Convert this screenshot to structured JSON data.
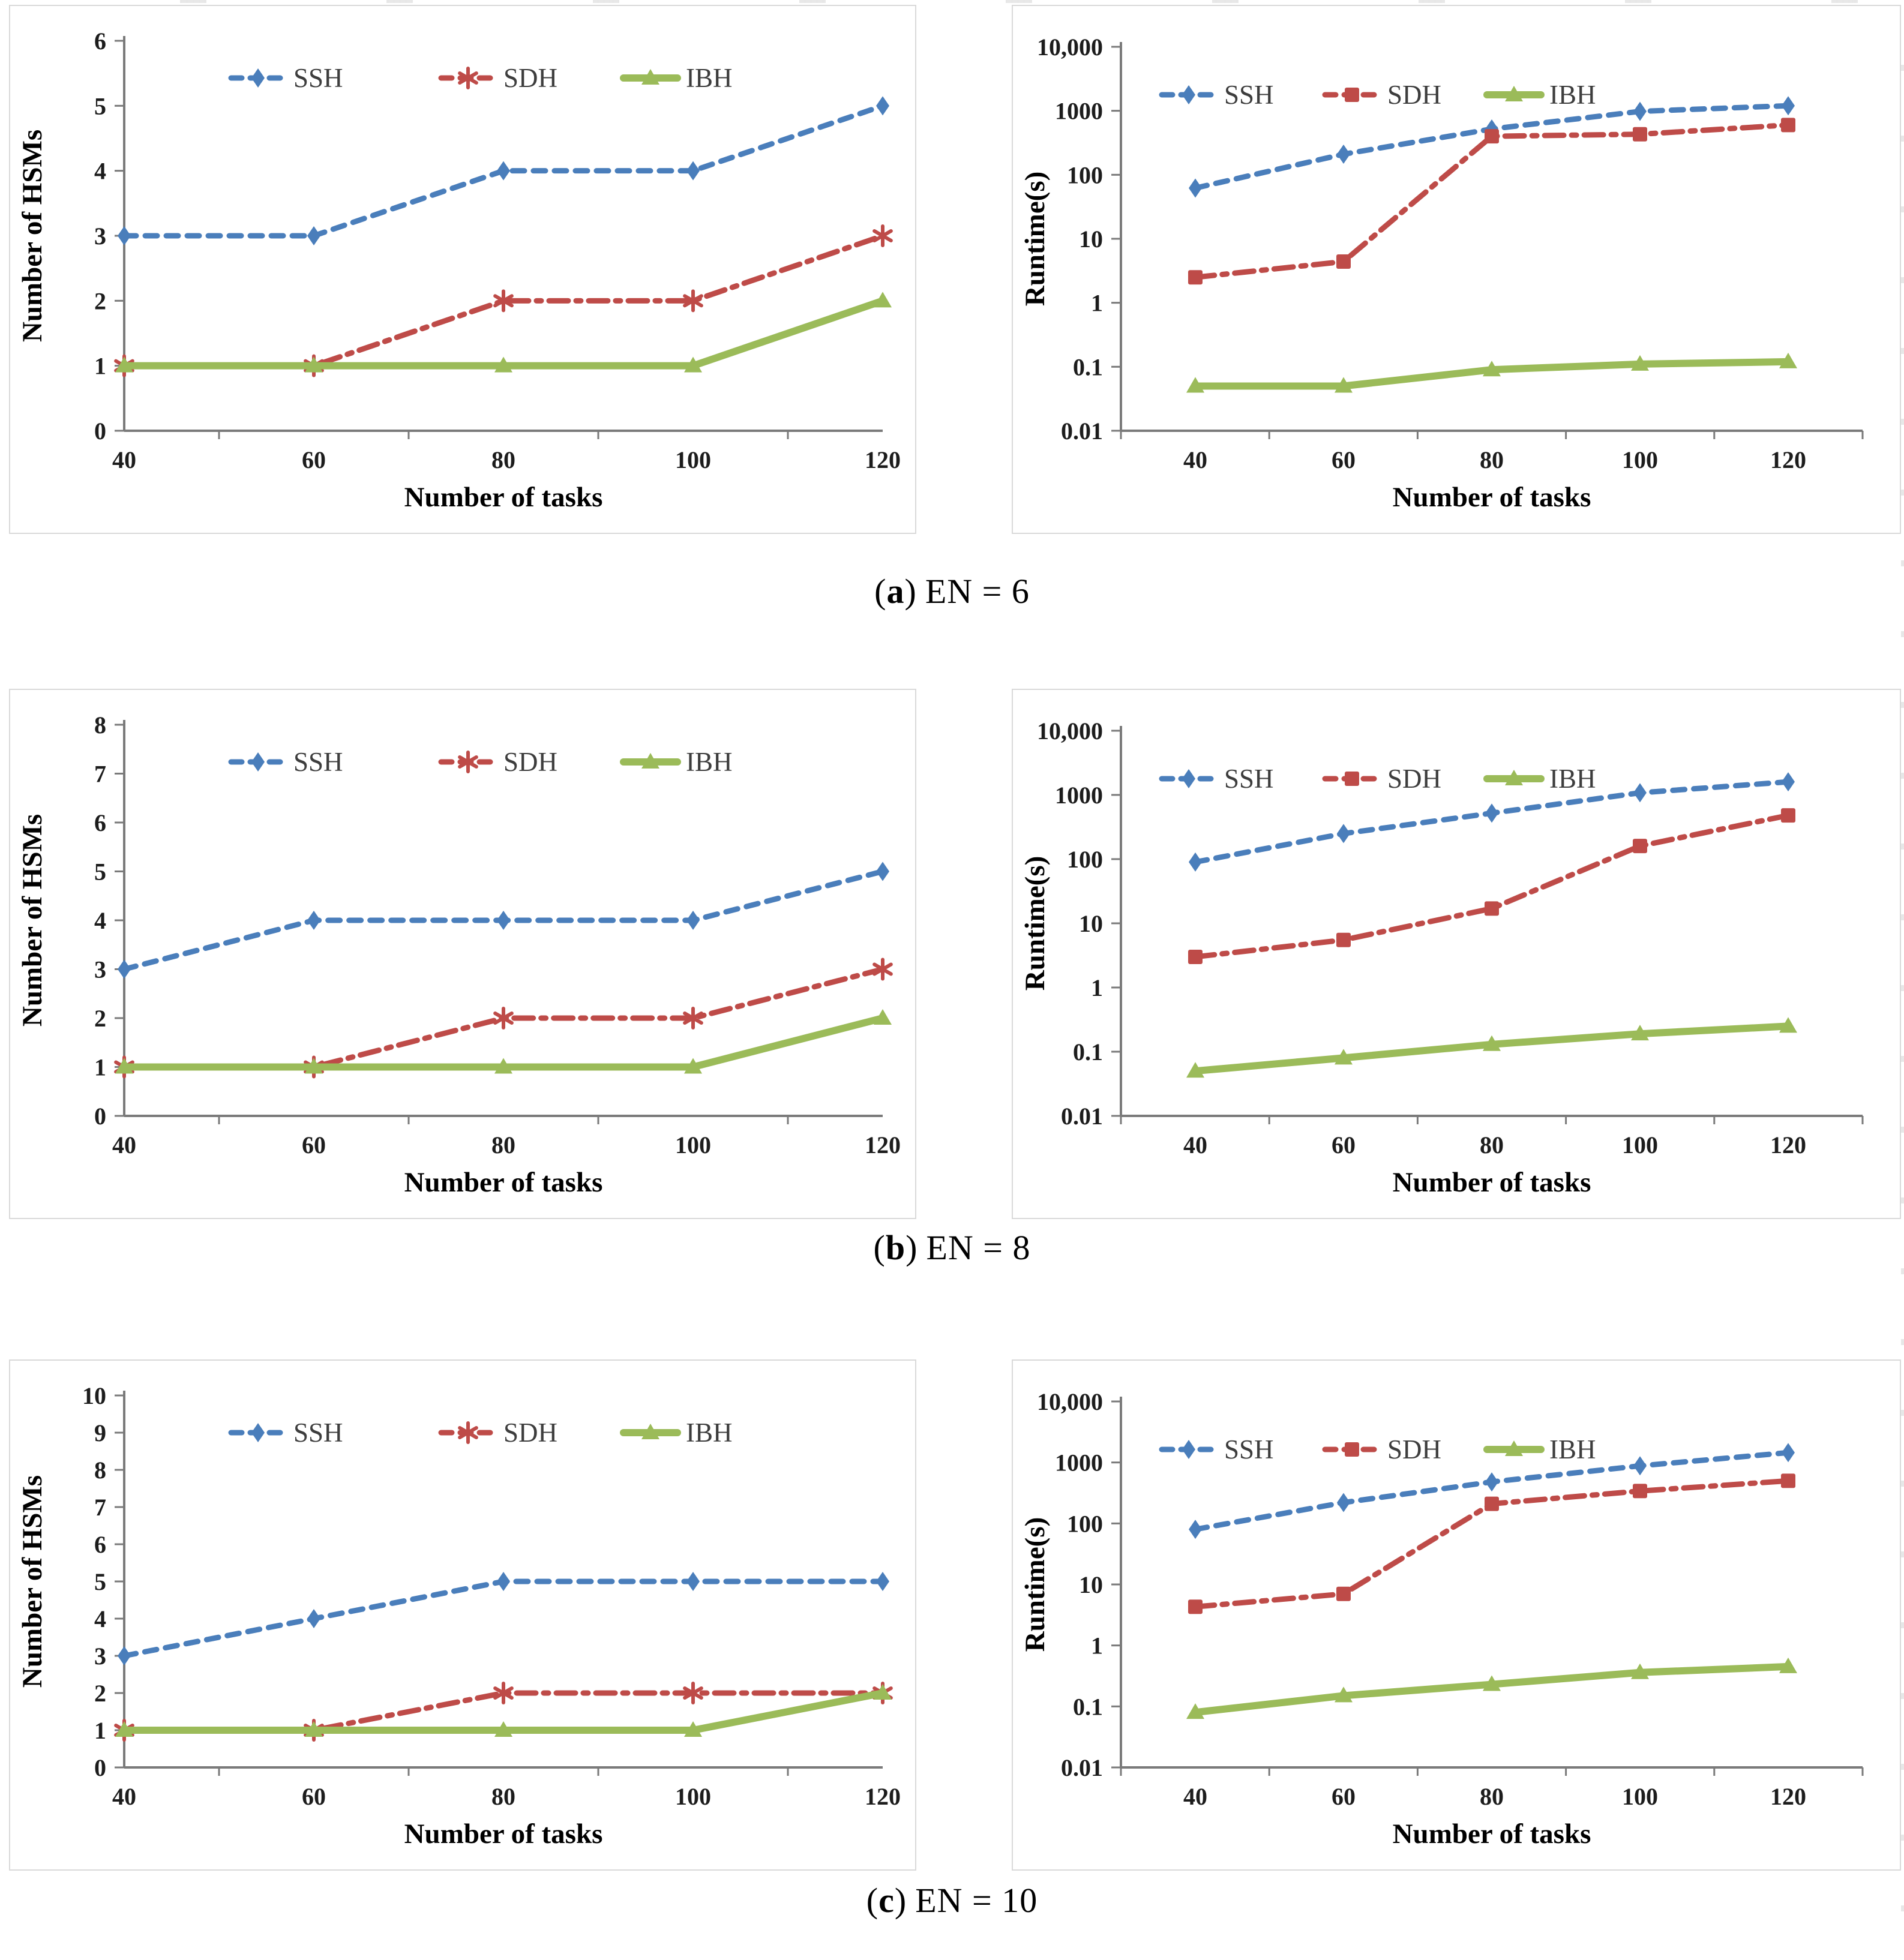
{
  "figure": {
    "captions": [
      {
        "open": "(",
        "letter": "a",
        "close": ")",
        "text": "EN = 6"
      },
      {
        "open": "(",
        "letter": "b",
        "close": ")",
        "text": "EN = 8"
      },
      {
        "open": "(",
        "letter": "c",
        "close": ")",
        "text": "EN = 10"
      }
    ]
  },
  "colors": {
    "ssh": "#4A7EBB",
    "sdh": "#BE4B48",
    "ibh": "#9BBB59",
    "axis": "#7a7a7a",
    "legend_text": "#3d3d3d",
    "panel_border": "#d9d9d9"
  },
  "chart_data": [
    {
      "id": "en6-hsms",
      "type": "line",
      "group": "EN = 6",
      "x": [
        40,
        60,
        80,
        100,
        120
      ],
      "xlabel": "Number of tasks",
      "ylabel": "Number of HSMs",
      "y_scale": "linear",
      "ylim": [
        0,
        6
      ],
      "yticks": [
        0,
        1,
        2,
        3,
        4,
        5,
        6
      ],
      "ytick_labels": [
        "0",
        "1",
        "2",
        "3",
        "4",
        "5",
        "6"
      ],
      "grid": false,
      "legend_position": "top-center",
      "series": [
        {
          "name": "SSH",
          "color_key": "ssh",
          "line_style": "dashed",
          "marker": "diamond",
          "values": [
            3,
            3,
            4,
            4,
            5
          ]
        },
        {
          "name": "SDH",
          "color_key": "sdh",
          "line_style": "dashdot",
          "marker": "asterisk",
          "values": [
            1,
            1,
            2,
            2,
            3
          ]
        },
        {
          "name": "IBH",
          "color_key": "ibh",
          "line_style": "solid",
          "marker": "triangle",
          "values": [
            1,
            1,
            1,
            1,
            2
          ]
        }
      ]
    },
    {
      "id": "en6-runtime",
      "type": "line",
      "group": "EN = 6",
      "x": [
        40,
        60,
        80,
        100,
        120
      ],
      "xlabel": "Number of tasks",
      "ylabel": "Runtime(s)",
      "y_scale": "log",
      "ylim": [
        0.01,
        10000
      ],
      "yticks": [
        0.01,
        0.1,
        1,
        10,
        100,
        1000,
        10000
      ],
      "ytick_labels": [
        "0.01",
        "0.1",
        "1",
        "10",
        "100",
        "1000",
        "10,000"
      ],
      "grid": false,
      "legend_position": "top-left",
      "series": [
        {
          "name": "SSH",
          "color_key": "ssh",
          "line_style": "dashed",
          "marker": "diamond",
          "values": [
            62,
            210,
            520,
            980,
            1200
          ]
        },
        {
          "name": "SDH",
          "color_key": "sdh",
          "line_style": "dashdot",
          "marker": "square",
          "values": [
            2.5,
            4.4,
            400,
            430,
            600
          ]
        },
        {
          "name": "IBH",
          "color_key": "ibh",
          "line_style": "solid",
          "marker": "triangle",
          "values": [
            0.05,
            0.05,
            0.09,
            0.11,
            0.12
          ]
        }
      ]
    },
    {
      "id": "en8-hsms",
      "type": "line",
      "group": "EN = 8",
      "x": [
        40,
        60,
        80,
        100,
        120
      ],
      "xlabel": "Number of tasks",
      "ylabel": "Number of HSMs",
      "y_scale": "linear",
      "ylim": [
        0,
        8
      ],
      "yticks": [
        0,
        1,
        2,
        3,
        4,
        5,
        6,
        7,
        8
      ],
      "ytick_labels": [
        "0",
        "1",
        "2",
        "3",
        "4",
        "5",
        "6",
        "7",
        "8"
      ],
      "grid": false,
      "legend_position": "top-center",
      "series": [
        {
          "name": "SSH",
          "color_key": "ssh",
          "line_style": "dashed",
          "marker": "diamond",
          "values": [
            3,
            4,
            4,
            4,
            5
          ]
        },
        {
          "name": "SDH",
          "color_key": "sdh",
          "line_style": "dashdot",
          "marker": "asterisk",
          "values": [
            1,
            1,
            2,
            2,
            3
          ]
        },
        {
          "name": "IBH",
          "color_key": "ibh",
          "line_style": "solid",
          "marker": "triangle",
          "values": [
            1,
            1,
            1,
            1,
            2
          ]
        }
      ]
    },
    {
      "id": "en8-runtime",
      "type": "line",
      "group": "EN = 8",
      "x": [
        40,
        60,
        80,
        100,
        120
      ],
      "xlabel": "Number of tasks",
      "ylabel": "Runtime(s)",
      "y_scale": "log",
      "ylim": [
        0.01,
        10000
      ],
      "yticks": [
        0.01,
        0.1,
        1,
        10,
        100,
        1000,
        10000
      ],
      "ytick_labels": [
        "0.01",
        "0.1",
        "1",
        "10",
        "100",
        "1000",
        "10,000"
      ],
      "grid": false,
      "legend_position": "top-left",
      "series": [
        {
          "name": "SSH",
          "color_key": "ssh",
          "line_style": "dashed",
          "marker": "diamond",
          "values": [
            90,
            250,
            520,
            1080,
            1600
          ]
        },
        {
          "name": "SDH",
          "color_key": "sdh",
          "line_style": "dashdot",
          "marker": "square",
          "values": [
            3,
            5.5,
            17,
            160,
            480
          ]
        },
        {
          "name": "IBH",
          "color_key": "ibh",
          "line_style": "solid",
          "marker": "triangle",
          "values": [
            0.05,
            0.08,
            0.13,
            0.19,
            0.25
          ]
        }
      ]
    },
    {
      "id": "en10-hsms",
      "type": "line",
      "group": "EN = 10",
      "x": [
        40,
        60,
        80,
        100,
        120
      ],
      "xlabel": "Number of tasks",
      "ylabel": "Number of HSMs",
      "y_scale": "linear",
      "ylim": [
        0,
        10
      ],
      "yticks": [
        0,
        1,
        2,
        3,
        4,
        5,
        6,
        7,
        8,
        9,
        10
      ],
      "ytick_labels": [
        "0",
        "1",
        "2",
        "3",
        "4",
        "5",
        "6",
        "7",
        "8",
        "9",
        "10"
      ],
      "grid": false,
      "legend_position": "top-center",
      "series": [
        {
          "name": "SSH",
          "color_key": "ssh",
          "line_style": "dashed",
          "marker": "diamond",
          "values": [
            3,
            4,
            5,
            5,
            5
          ]
        },
        {
          "name": "SDH",
          "color_key": "sdh",
          "line_style": "dashdot",
          "marker": "asterisk",
          "values": [
            1,
            1,
            2,
            2,
            2
          ]
        },
        {
          "name": "IBH",
          "color_key": "ibh",
          "line_style": "solid",
          "marker": "triangle",
          "values": [
            1,
            1,
            1,
            1,
            2
          ]
        }
      ]
    },
    {
      "id": "en10-runtime",
      "type": "line",
      "group": "EN = 10",
      "x": [
        40,
        60,
        80,
        100,
        120
      ],
      "xlabel": "Number of tasks",
      "ylabel": "Runtime(s)",
      "y_scale": "log",
      "ylim": [
        0.01,
        10000
      ],
      "yticks": [
        0.01,
        0.1,
        1,
        10,
        100,
        1000,
        10000
      ],
      "ytick_labels": [
        "0.01",
        "0.1",
        "1",
        "10",
        "100",
        "1000",
        "10,000"
      ],
      "grid": false,
      "legend_position": "top-left",
      "series": [
        {
          "name": "SSH",
          "color_key": "ssh",
          "line_style": "dashed",
          "marker": "diamond",
          "values": [
            80,
            220,
            480,
            880,
            1450
          ]
        },
        {
          "name": "SDH",
          "color_key": "sdh",
          "line_style": "dashdot",
          "marker": "square",
          "values": [
            4.3,
            7,
            210,
            340,
            500
          ]
        },
        {
          "name": "IBH",
          "color_key": "ibh",
          "line_style": "solid",
          "marker": "triangle",
          "values": [
            0.08,
            0.15,
            0.23,
            0.36,
            0.45
          ]
        }
      ]
    }
  ]
}
